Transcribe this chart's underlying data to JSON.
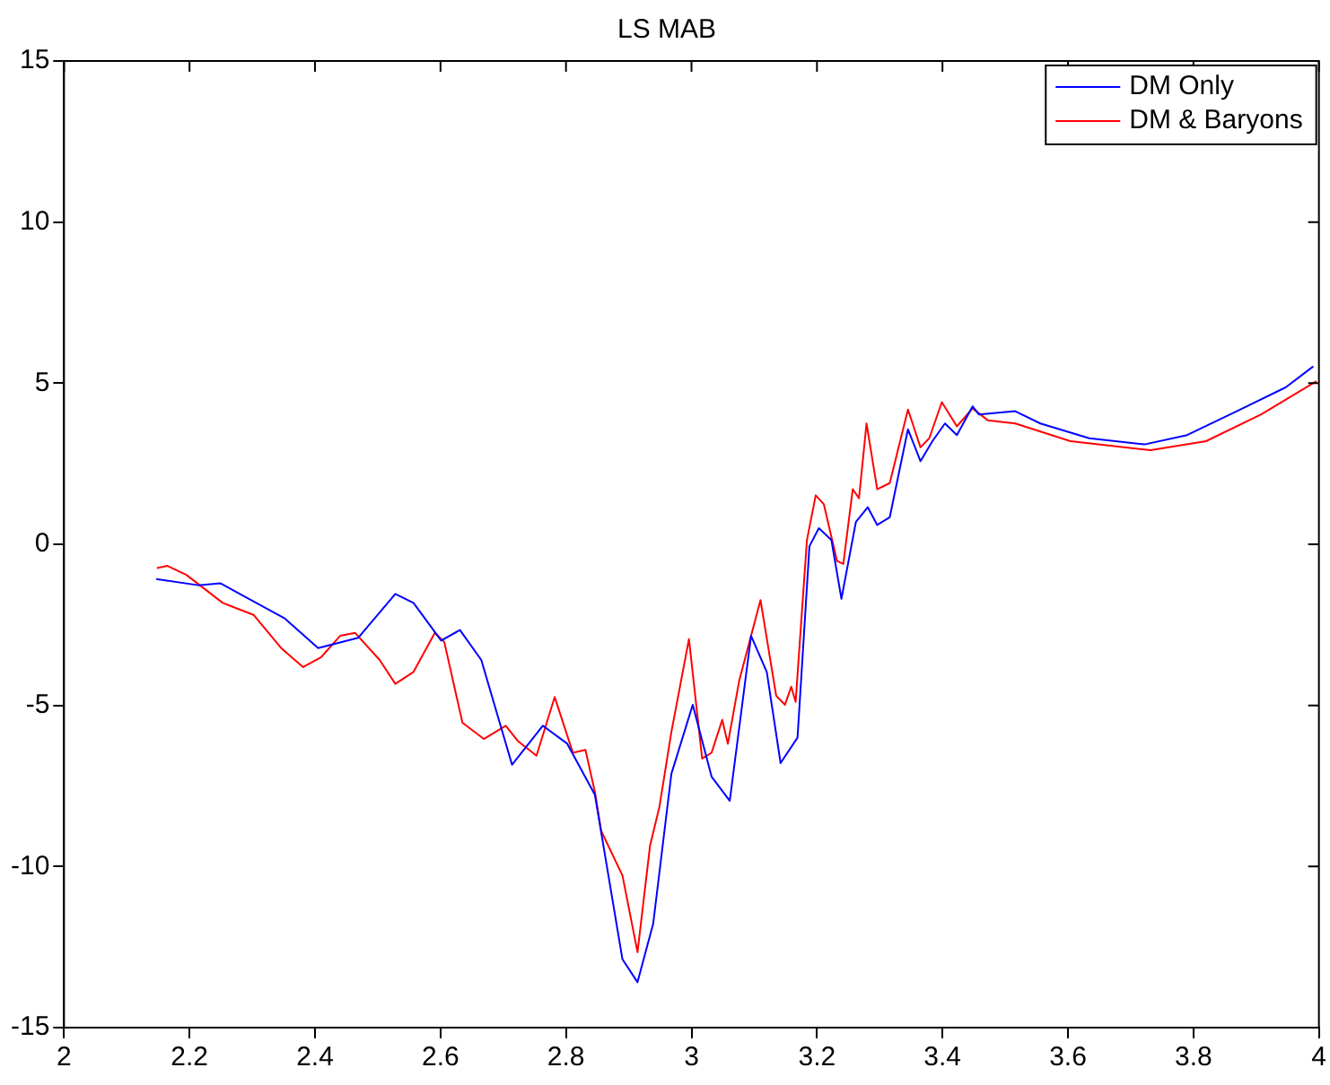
{
  "chart_data": {
    "type": "line",
    "title": "LS MAB",
    "xlim": [
      2,
      4
    ],
    "xticks": [
      2,
      2.2,
      2.4,
      2.6,
      2.8,
      3,
      3.2,
      3.4,
      3.6,
      3.8,
      4
    ],
    "ylim": [
      -15,
      15
    ],
    "yticks": [
      -15,
      -10,
      -5,
      0,
      5,
      10,
      15
    ],
    "grid": false,
    "legend": "top right",
    "marker": "none",
    "line_style": "solid",
    "series": [
      {
        "name": "DM Only",
        "color": "#0000ff",
        "x": [
          2.147,
          2.214,
          2.249,
          2.351,
          2.405,
          2.469,
          2.528,
          2.557,
          2.601,
          2.631,
          2.665,
          2.714,
          2.763,
          2.802,
          2.846,
          2.89,
          2.914,
          2.939,
          2.968,
          3.002,
          3.032,
          3.061,
          3.095,
          3.12,
          3.142,
          3.169,
          3.188,
          3.203,
          3.223,
          3.239,
          3.262,
          3.281,
          3.296,
          3.316,
          3.345,
          3.365,
          3.384,
          3.404,
          3.423,
          3.448,
          3.458,
          3.516,
          3.556,
          3.634,
          3.722,
          3.79,
          3.869,
          3.947,
          3.991
        ],
        "values": [
          -1.08,
          -1.27,
          -1.21,
          -2.29,
          -3.22,
          -2.9,
          -1.54,
          -1.82,
          -2.99,
          -2.66,
          -3.59,
          -6.84,
          -5.63,
          -6.19,
          -7.77,
          -12.88,
          -13.59,
          -11.77,
          -7.12,
          -4.98,
          -7.21,
          -7.96,
          -2.84,
          -3.96,
          -6.79,
          -6.0,
          -0.06,
          0.5,
          0.13,
          -1.69,
          0.69,
          1.15,
          0.6,
          0.84,
          3.57,
          2.58,
          3.2,
          3.75,
          3.39,
          4.28,
          4.03,
          4.13,
          3.75,
          3.29,
          3.1,
          3.39,
          4.13,
          4.87,
          5.52
        ]
      },
      {
        "name": "DM & Baryons",
        "color": "#ff0000",
        "x": [
          2.148,
          2.165,
          2.195,
          2.253,
          2.302,
          2.346,
          2.381,
          2.41,
          2.44,
          2.464,
          2.503,
          2.528,
          2.557,
          2.591,
          2.606,
          2.635,
          2.669,
          2.704,
          2.723,
          2.753,
          2.782,
          2.811,
          2.831,
          2.846,
          2.856,
          2.89,
          2.914,
          2.934,
          2.949,
          2.968,
          2.996,
          3.017,
          3.032,
          3.049,
          3.058,
          3.076,
          3.11,
          3.135,
          3.149,
          3.159,
          3.166,
          3.184,
          3.198,
          3.211,
          3.232,
          3.242,
          3.257,
          3.267,
          3.279,
          3.296,
          3.316,
          3.345,
          3.365,
          3.379,
          3.399,
          3.423,
          3.448,
          3.472,
          3.516,
          3.604,
          3.732,
          3.82,
          3.908,
          3.996
        ],
        "values": [
          -0.74,
          -0.67,
          -0.95,
          -1.82,
          -2.19,
          -3.22,
          -3.81,
          -3.5,
          -2.84,
          -2.75,
          -3.59,
          -4.33,
          -3.96,
          -2.75,
          -3.03,
          -5.54,
          -6.04,
          -5.63,
          -6.1,
          -6.56,
          -4.74,
          -6.47,
          -6.38,
          -7.68,
          -8.89,
          -10.28,
          -12.66,
          -9.35,
          -8.14,
          -5.82,
          -2.94,
          -6.65,
          -6.47,
          -5.45,
          -6.19,
          -4.24,
          -1.73,
          -4.7,
          -4.98,
          -4.42,
          -4.89,
          0.13,
          1.52,
          1.24,
          -0.52,
          -0.61,
          1.71,
          1.43,
          3.75,
          1.71,
          1.9,
          4.18,
          3.01,
          3.29,
          4.41,
          3.66,
          4.22,
          3.85,
          3.75,
          3.2,
          2.92,
          3.2,
          4.03,
          5.06
        ]
      }
    ]
  }
}
